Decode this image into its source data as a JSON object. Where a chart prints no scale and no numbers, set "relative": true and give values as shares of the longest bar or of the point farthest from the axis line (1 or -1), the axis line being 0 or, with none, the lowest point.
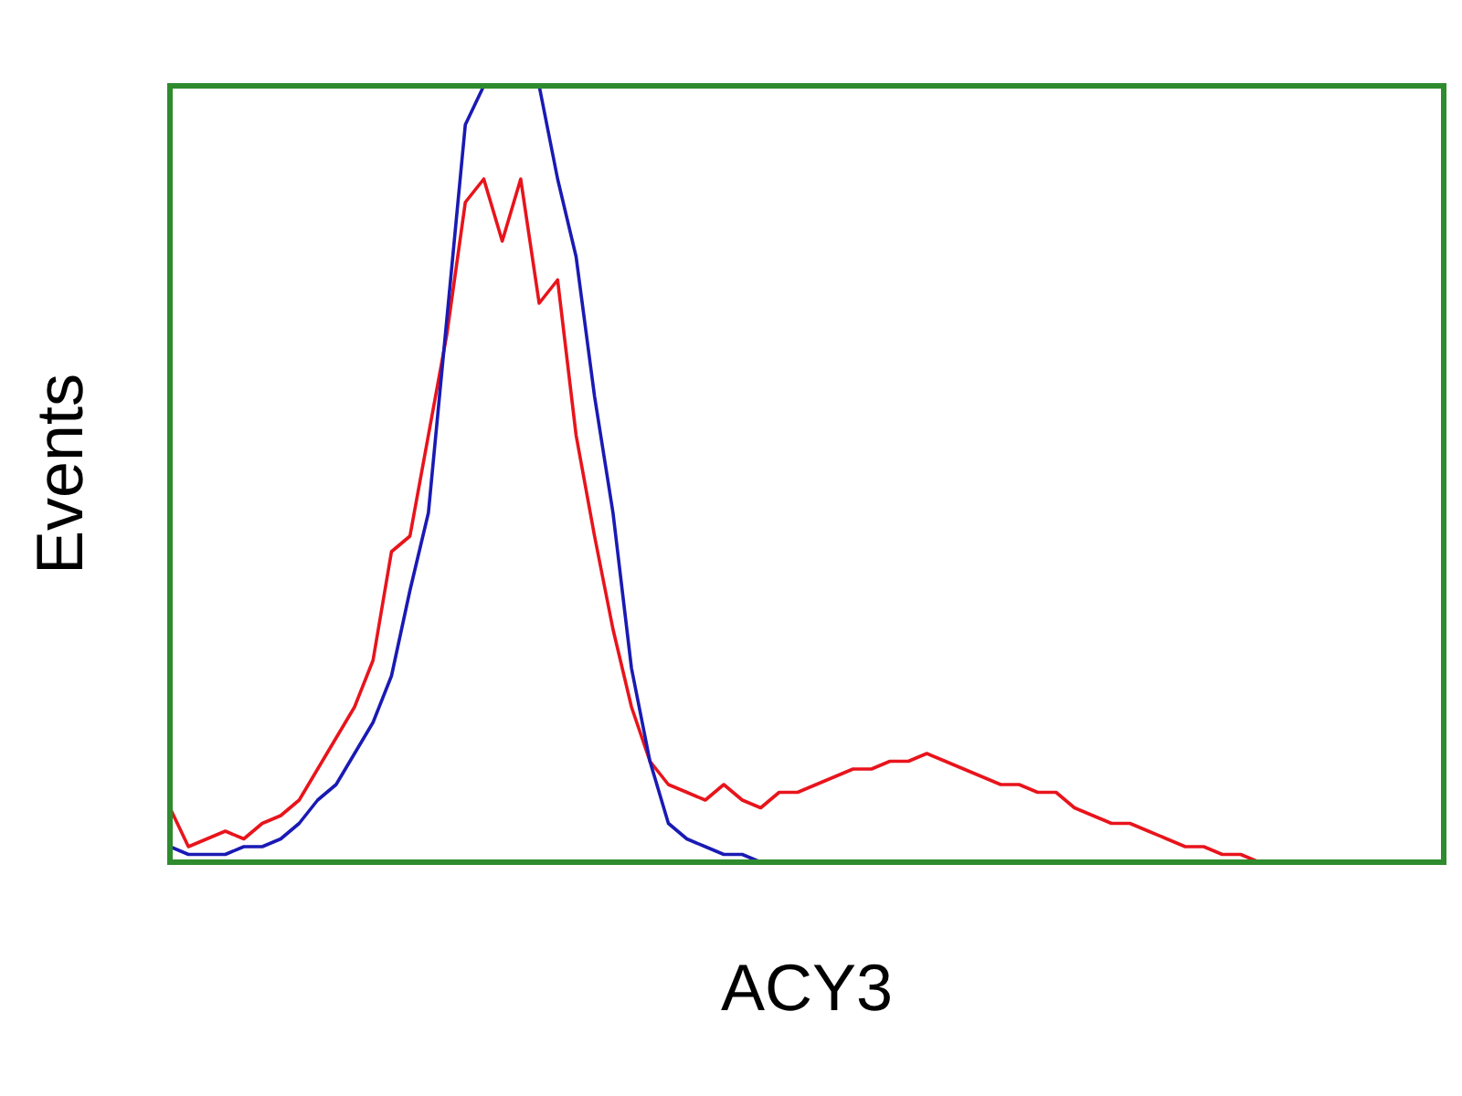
{
  "chart_data": {
    "type": "line",
    "relative": true,
    "xlabel": "ACY3",
    "ylabel": "Events",
    "marker": "none",
    "line_style": "solid",
    "categories": [
      null,
      null,
      null,
      null,
      null,
      null,
      null,
      null,
      null,
      null,
      null,
      null,
      null,
      null,
      null,
      null,
      null,
      null,
      null,
      null,
      null,
      null,
      null,
      null,
      null,
      null,
      null,
      null,
      null,
      null,
      null,
      null,
      null,
      null,
      null,
      null,
      null,
      null,
      null,
      null,
      null,
      null,
      null,
      null,
      null,
      null,
      null,
      null,
      null,
      null,
      null,
      null,
      null,
      null,
      null,
      null,
      null,
      null,
      null,
      null,
      null,
      null,
      null,
      null,
      null,
      null,
      null,
      null,
      null,
      null
    ],
    "series": [
      {
        "color": "#e8141c",
        "values": [
          0.07,
          0.02,
          0.03,
          0.04,
          0.03,
          0.05,
          0.06,
          0.08,
          0.12,
          0.16,
          0.2,
          0.26,
          0.4,
          0.42,
          0.55,
          0.68,
          0.85,
          0.88,
          0.8,
          0.88,
          0.72,
          0.75,
          0.55,
          0.42,
          0.3,
          0.2,
          0.13,
          0.1,
          0.09,
          0.08,
          0.1,
          0.08,
          0.07,
          0.09,
          0.09,
          0.1,
          0.11,
          0.12,
          0.12,
          0.13,
          0.13,
          0.14,
          0.13,
          0.12,
          0.11,
          0.1,
          0.1,
          0.09,
          0.09,
          0.07,
          0.06,
          0.05,
          0.05,
          0.04,
          0.03,
          0.02,
          0.02,
          0.01,
          0.01,
          0,
          null,
          null,
          null,
          null,
          null,
          null,
          null,
          null,
          null,
          null
        ]
      },
      {
        "color": "#1a1ab4",
        "values": [
          0.02,
          0.01,
          0.01,
          0.01,
          0.02,
          0.02,
          0.03,
          0.05,
          0.08,
          0.1,
          0.14,
          0.18,
          0.24,
          0.35,
          0.45,
          0.7,
          0.95,
          1,
          null,
          null,
          1,
          0.88,
          0.78,
          0.6,
          0.45,
          0.25,
          0.13,
          0.05,
          0.03,
          0.02,
          0.01,
          0.01,
          0,
          null,
          null,
          null,
          null,
          null,
          null,
          null,
          null,
          null,
          null,
          null,
          null,
          null,
          null,
          null,
          null,
          null,
          null,
          null,
          null,
          null,
          null,
          null,
          null,
          null,
          null,
          null,
          null,
          null,
          null,
          null,
          null,
          null,
          null,
          null,
          null,
          null
        ]
      }
    ]
  }
}
